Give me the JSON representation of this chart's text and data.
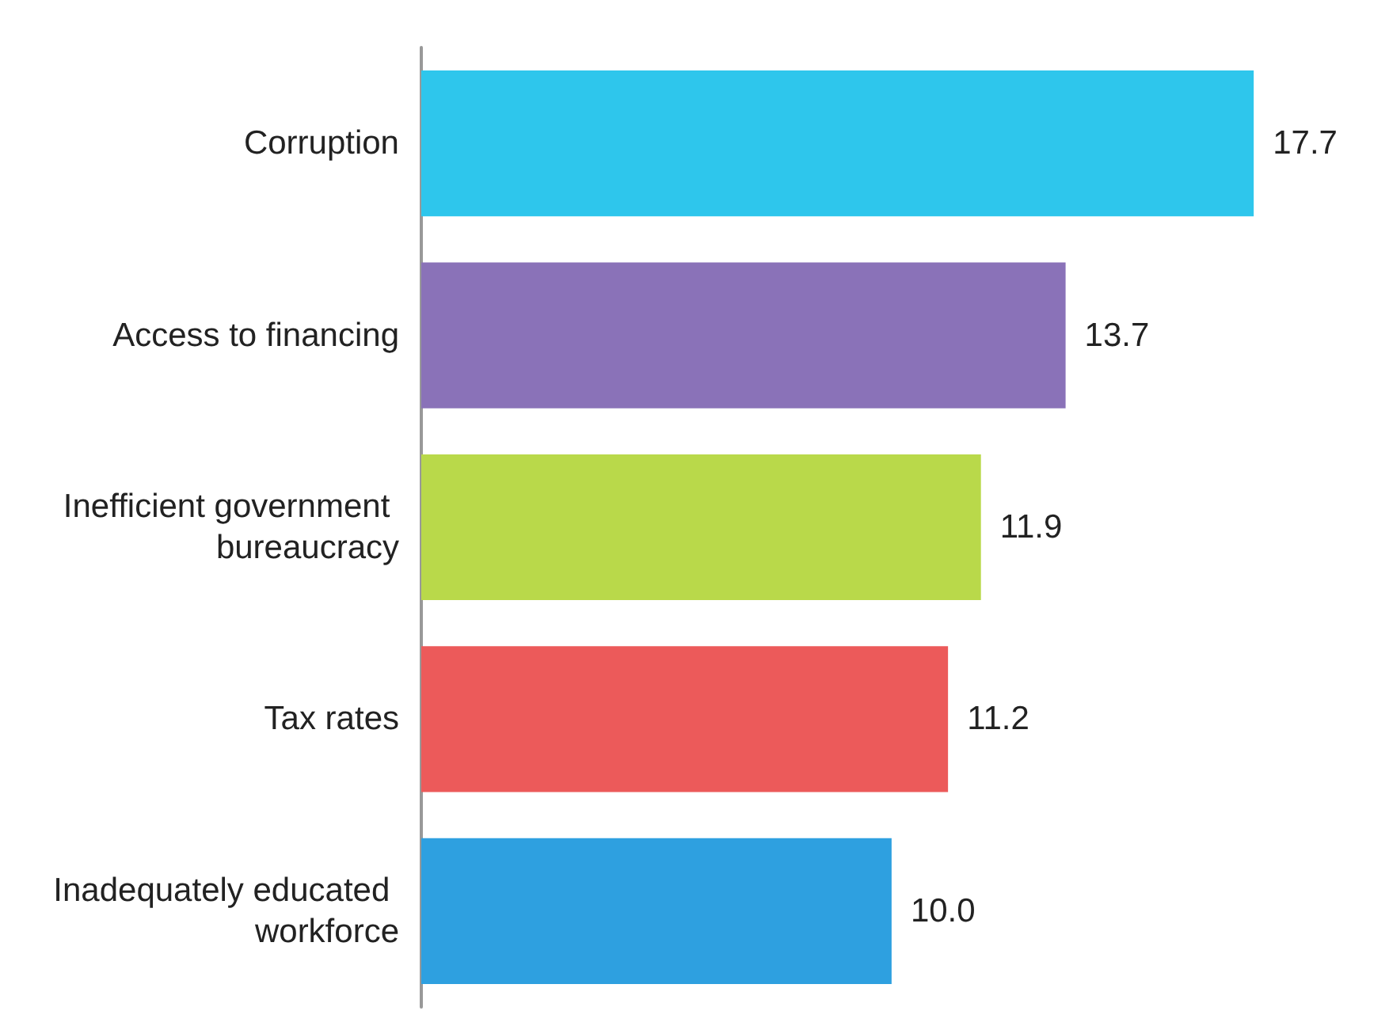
{
  "chart_data": {
    "type": "bar",
    "orientation": "horizontal",
    "relative": false,
    "categories": [
      "Corruption",
      "Access to financing",
      "Inefficient government bureaucracy",
      "Tax rates",
      "Inadequately educated workforce"
    ],
    "values": [
      17.7,
      13.7,
      11.9,
      11.2,
      10.0
    ],
    "colors": [
      "#2ec6ec",
      "#8a72b8",
      "#b9d94a",
      "#ec5a5a",
      "#2ea0e0"
    ],
    "value_labels": [
      "17.7",
      "13.7",
      "11.9",
      "11.2",
      "10.0"
    ],
    "grid": false
  }
}
